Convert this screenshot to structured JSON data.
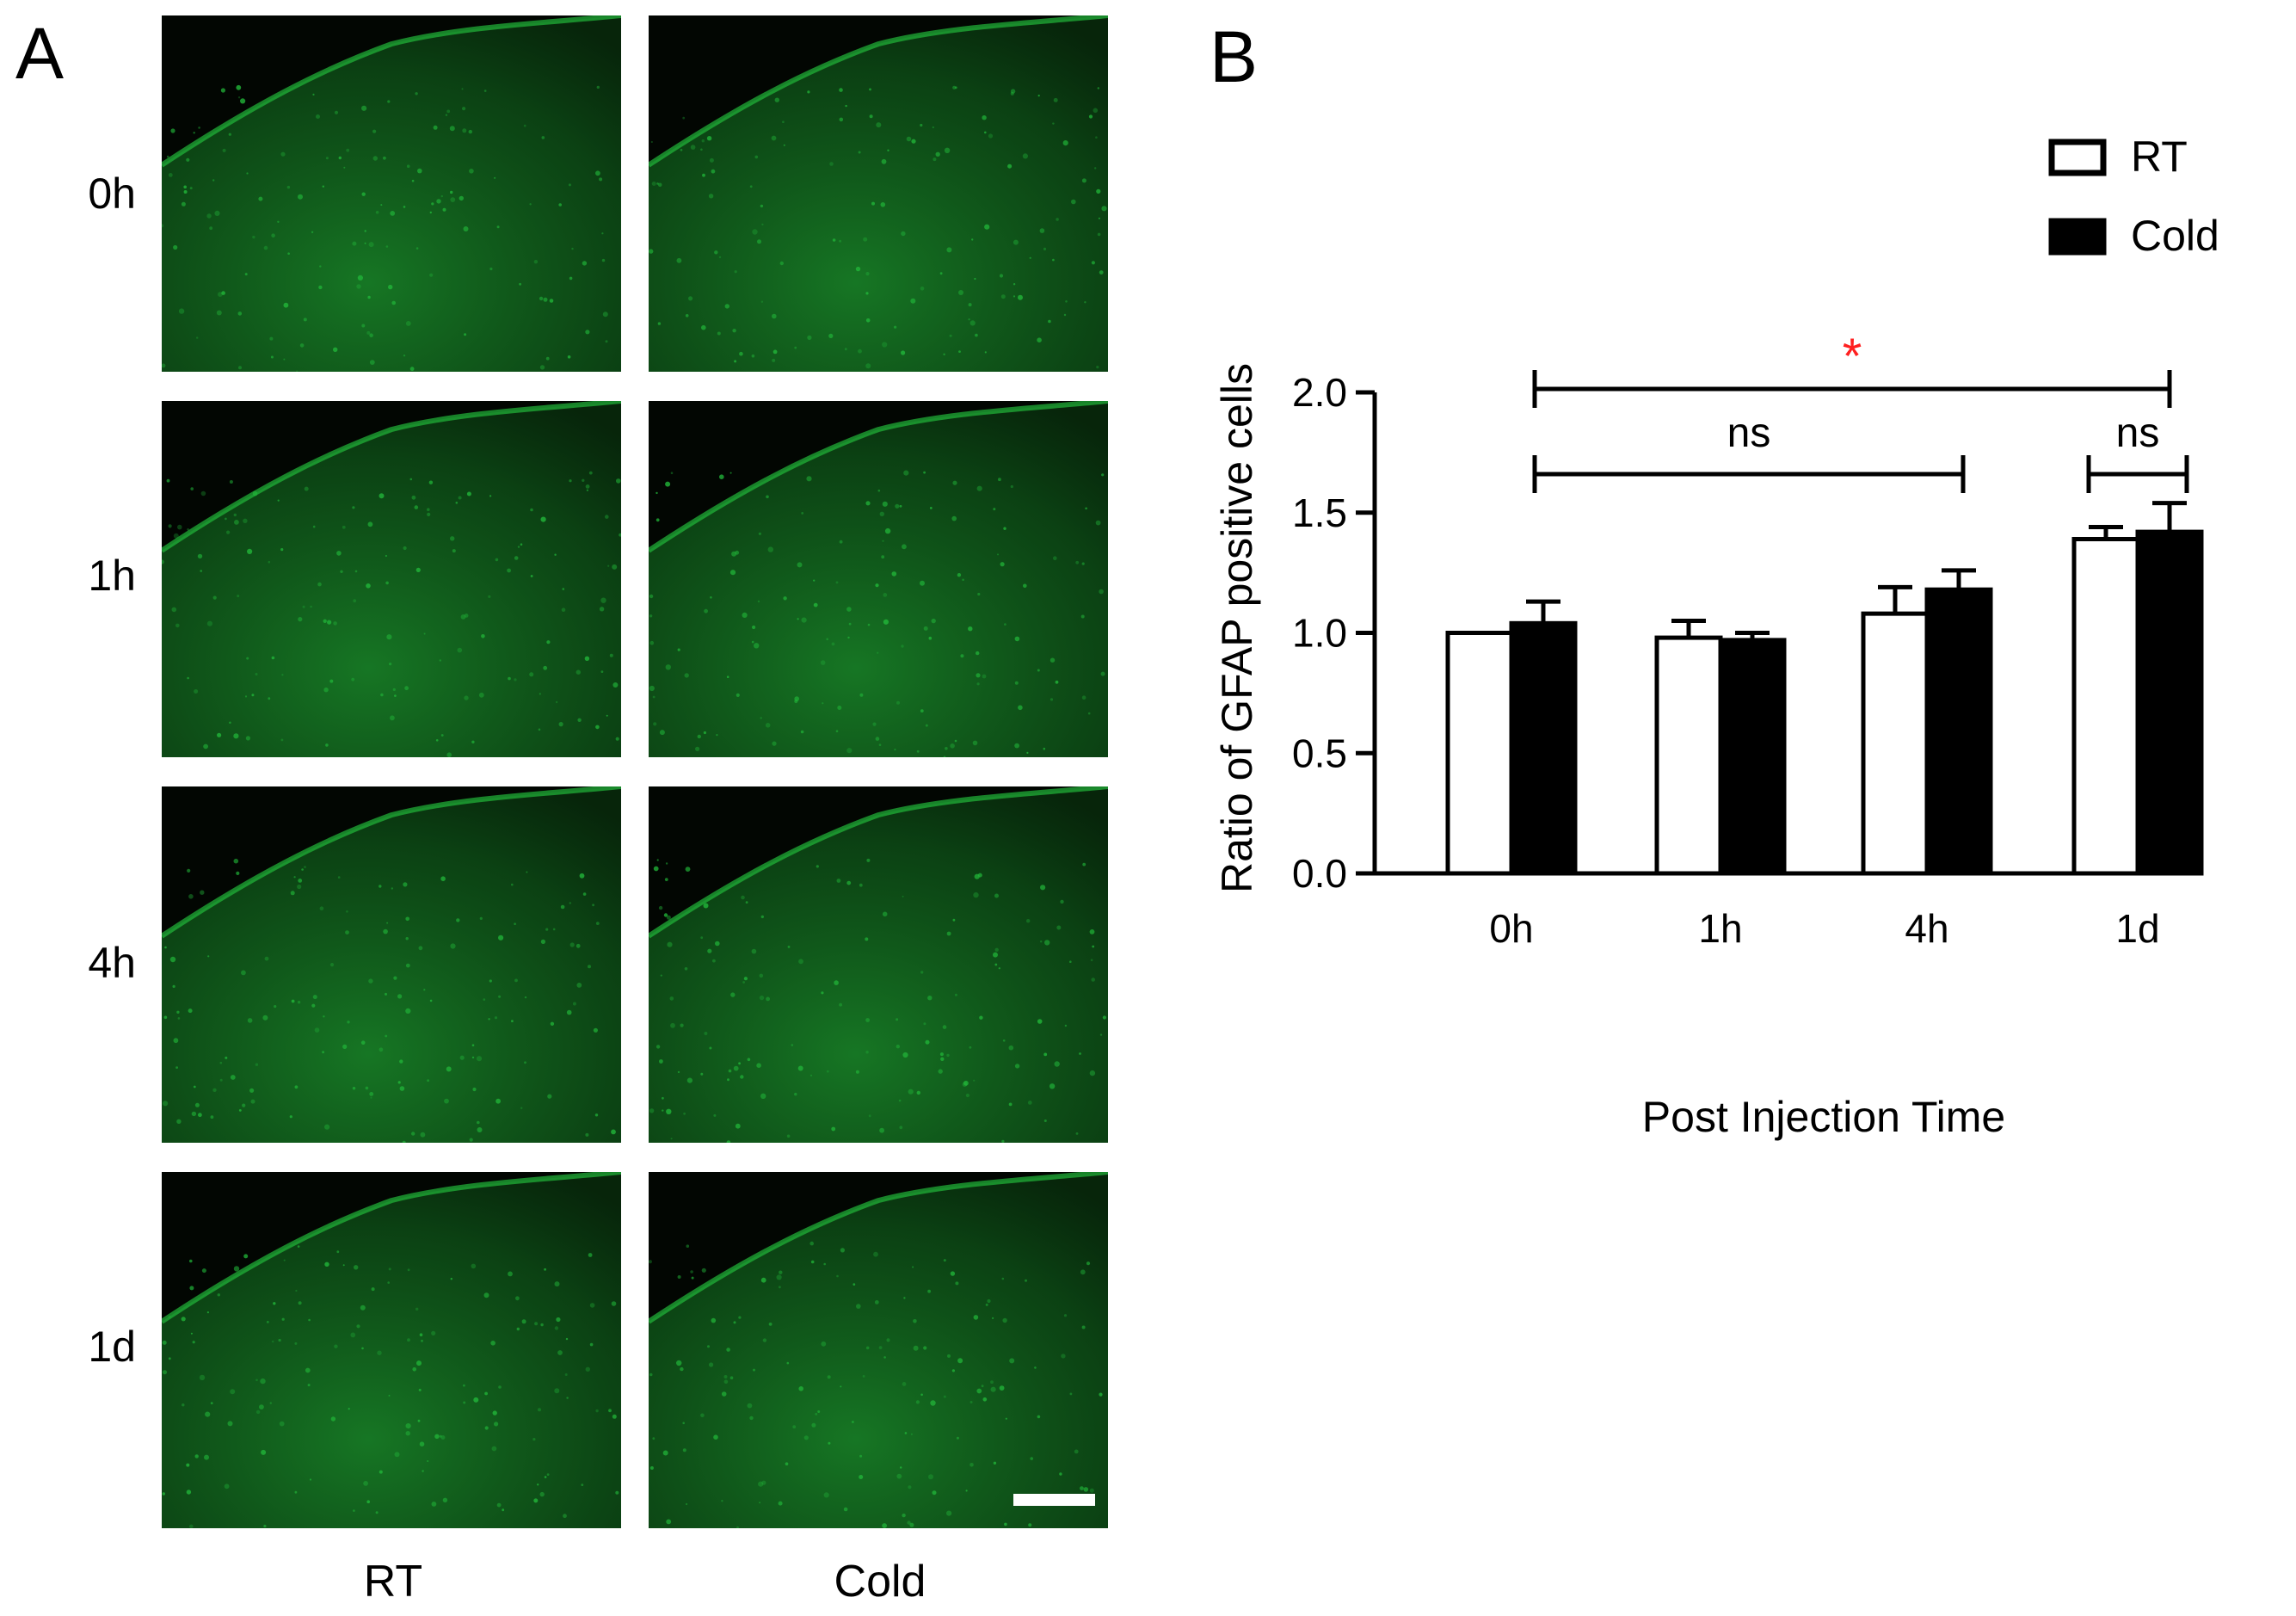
{
  "panel_a": {
    "label": "A",
    "row_labels": [
      "0h",
      "1h",
      "4h",
      "1d"
    ],
    "col_labels": [
      "RT",
      "Cold"
    ],
    "tissue_color": "#22b83a"
  },
  "panel_b": {
    "label": "B"
  },
  "chart_data": {
    "type": "bar",
    "categories": [
      "0h",
      "1h",
      "4h",
      "1d"
    ],
    "xlabel": "Post Injection Time",
    "ylabel": "Ratio of GFAP positive cells",
    "ylim": [
      0,
      2.0
    ],
    "yticks": [
      0.0,
      0.5,
      1.0,
      1.5,
      2.0
    ],
    "ytick_labels": [
      "0.0",
      "0.5",
      "1.0",
      "1.5",
      "2.0"
    ],
    "series": [
      {
        "name": "RT",
        "values": [
          1.0,
          0.98,
          1.08,
          1.39
        ],
        "errors": [
          0.0,
          0.07,
          0.11,
          0.05
        ],
        "fill": "#ffffff"
      },
      {
        "name": "Cold",
        "values": [
          1.04,
          0.97,
          1.18,
          1.42
        ],
        "errors": [
          0.09,
          0.03,
          0.08,
          0.12
        ],
        "fill": "#000000"
      }
    ],
    "legend_position": "top-right",
    "significance": [
      {
        "label": "*",
        "color": "#ff2020",
        "from_category": 0,
        "to_category": 3,
        "level": 2.05
      },
      {
        "label": "ns",
        "color": "#000000",
        "from_category": 0,
        "to_category": 2,
        "level": 1.66
      },
      {
        "label": "ns",
        "color": "#000000",
        "from_category": 3,
        "to_category": 3,
        "level": 1.66
      }
    ],
    "grid": false
  }
}
